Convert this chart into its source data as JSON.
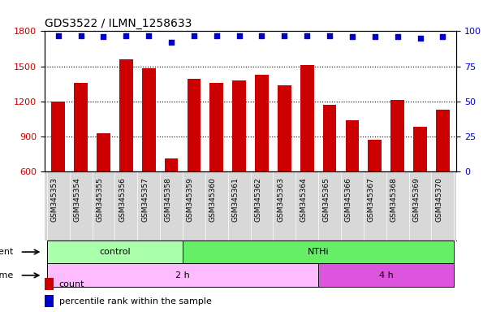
{
  "title": "GDS3522 / ILMN_1258633",
  "samples": [
    "GSM345353",
    "GSM345354",
    "GSM345355",
    "GSM345356",
    "GSM345357",
    "GSM345358",
    "GSM345359",
    "GSM345360",
    "GSM345361",
    "GSM345362",
    "GSM345363",
    "GSM345364",
    "GSM345365",
    "GSM345366",
    "GSM345367",
    "GSM345368",
    "GSM345369",
    "GSM345370"
  ],
  "counts": [
    1200,
    1360,
    930,
    1560,
    1480,
    710,
    1390,
    1360,
    1380,
    1430,
    1340,
    1510,
    1170,
    1040,
    870,
    1210,
    980,
    1130
  ],
  "percentile_ranks": [
    97,
    97,
    96,
    97,
    97,
    92,
    97,
    97,
    97,
    97,
    97,
    97,
    97,
    96,
    96,
    96,
    95,
    96
  ],
  "bar_color": "#cc0000",
  "dot_color": "#0000cc",
  "ylim_left": [
    600,
    1800
  ],
  "ylim_right": [
    0,
    100
  ],
  "yticks_left": [
    600,
    900,
    1200,
    1500,
    1800
  ],
  "yticks_right": [
    0,
    25,
    50,
    75,
    100
  ],
  "agent_groups": [
    {
      "label": "control",
      "start": 0,
      "end": 6,
      "color": "#aaffaa"
    },
    {
      "label": "NTHi",
      "start": 6,
      "end": 18,
      "color": "#66ee66"
    }
  ],
  "time_groups": [
    {
      "label": "2 h",
      "start": 0,
      "end": 12,
      "color": "#ffbbff"
    },
    {
      "label": "4 h",
      "start": 12,
      "end": 18,
      "color": "#dd55dd"
    }
  ],
  "agent_label": "agent",
  "time_label": "time",
  "legend_count_label": "count",
  "legend_pct_label": "percentile rank within the sample",
  "tick_bg_color": "#dddddd",
  "plot_bg_color": "#ffffff"
}
